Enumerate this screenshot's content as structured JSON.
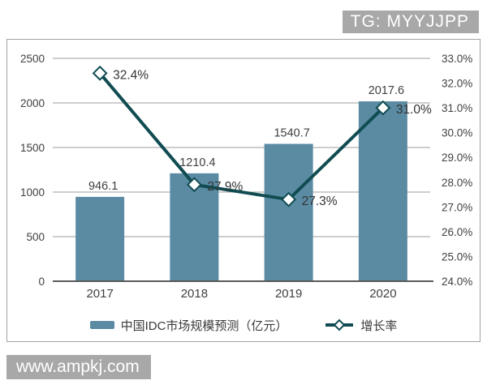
{
  "badge": {
    "text": "TG: MYYJJPP",
    "bg": "#a8a8a8"
  },
  "watermark": {
    "text": "www.ampkj.com",
    "bg": "#a8a8a8"
  },
  "colors": {
    "bar": "#5b8ba3",
    "line": "#104c52",
    "marker_fill": "#ffffff",
    "grid": "#b0b0b0",
    "axis": "#595959",
    "text": "#404040",
    "label_text": "#333333"
  },
  "chart_data": {
    "type": "bar",
    "subtype": "combo-bar-line",
    "title": "",
    "categories": [
      "2017",
      "2018",
      "2019",
      "2020"
    ],
    "series": [
      {
        "name": "中国IDC市场规模预测（亿元）",
        "type": "bar",
        "axis": "left",
        "values": [
          946.1,
          1210.4,
          1540.7,
          2017.6
        ],
        "labels": [
          "946.1",
          "1210.4",
          "1540.7",
          "2017.6"
        ]
      },
      {
        "name": "增长率",
        "type": "line",
        "axis": "right",
        "values": [
          32.4,
          27.9,
          27.3,
          31.0
        ],
        "labels": [
          "32.4%",
          "27.9%",
          "27.3%",
          "31.0%"
        ]
      }
    ],
    "left_axis": {
      "min": 0,
      "max": 2500,
      "step": 500,
      "ticks": [
        "0",
        "500",
        "1000",
        "1500",
        "2000",
        "2500"
      ]
    },
    "right_axis": {
      "min": 24,
      "max": 33,
      "step": 1,
      "ticks": [
        "24.0%",
        "25.0%",
        "26.0%",
        "27.0%",
        "28.0%",
        "29.0%",
        "30.0%",
        "31.0%",
        "32.0%",
        "33.0%"
      ]
    },
    "grid": true,
    "legend_position": "bottom"
  }
}
